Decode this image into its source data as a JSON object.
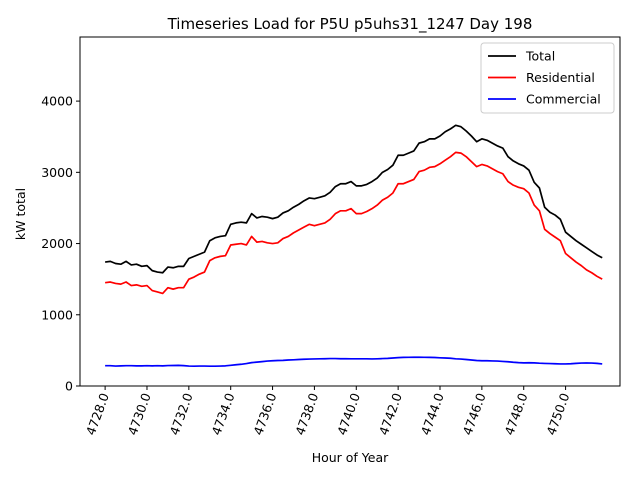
{
  "chart_data": {
    "type": "line",
    "title": "Timeseries Load for P5U p5uhs31_1247  Day 198",
    "xlabel": "Hour of Year",
    "ylabel": "kW total",
    "xlim": [
      4726.8,
      4752.6
    ],
    "ylim": [
      0,
      4900
    ],
    "x_ticks": [
      4728,
      4730,
      4732,
      4734,
      4736,
      4738,
      4740,
      4742,
      4744,
      4746,
      4748,
      4750
    ],
    "x_tick_labels": [
      "4728.0",
      "4730.0",
      "4732.0",
      "4734.0",
      "4736.0",
      "4738.0",
      "4740.0",
      "4742.0",
      "4744.0",
      "4746.0",
      "4748.0",
      "4750.0"
    ],
    "y_ticks": [
      0,
      1000,
      2000,
      3000,
      4000
    ],
    "y_tick_labels": [
      "0",
      "1000",
      "2000",
      "3000",
      "4000"
    ],
    "legend_position": "top-right",
    "x_start": 4728.0,
    "x_step": 0.25,
    "series": [
      {
        "name": "Total",
        "color": "#000000",
        "values": [
          1740,
          1750,
          1720,
          1710,
          1750,
          1700,
          1710,
          1680,
          1690,
          1620,
          1600,
          1590,
          1670,
          1660,
          1680,
          1680,
          1790,
          1820,
          1850,
          1880,
          2040,
          2080,
          2100,
          2110,
          2270,
          2290,
          2300,
          2290,
          2420,
          2360,
          2380,
          2370,
          2350,
          2370,
          2430,
          2460,
          2510,
          2550,
          2600,
          2640,
          2630,
          2650,
          2670,
          2720,
          2800,
          2840,
          2840,
          2870,
          2810,
          2810,
          2830,
          2870,
          2920,
          3000,
          3040,
          3100,
          3240,
          3240,
          3270,
          3300,
          3410,
          3430,
          3470,
          3470,
          3510,
          3570,
          3610,
          3660,
          3640,
          3580,
          3510,
          3430,
          3470,
          3450,
          3410,
          3370,
          3340,
          3220,
          3160,
          3120,
          3090,
          3030,
          2860,
          2780,
          2510,
          2440,
          2400,
          2340,
          2160,
          2100,
          2040,
          1990,
          1940,
          1890,
          1840,
          1800
        ]
      },
      {
        "name": "Residential",
        "color": "#ff0000",
        "values": [
          1450,
          1460,
          1440,
          1430,
          1460,
          1410,
          1420,
          1400,
          1410,
          1340,
          1320,
          1300,
          1380,
          1360,
          1380,
          1380,
          1500,
          1530,
          1570,
          1600,
          1760,
          1800,
          1820,
          1830,
          1980,
          1990,
          2000,
          1980,
          2100,
          2020,
          2030,
          2010,
          2000,
          2010,
          2070,
          2100,
          2150,
          2190,
          2230,
          2270,
          2250,
          2270,
          2290,
          2340,
          2420,
          2460,
          2460,
          2490,
          2420,
          2420,
          2450,
          2490,
          2540,
          2610,
          2650,
          2710,
          2840,
          2840,
          2870,
          2900,
          3010,
          3030,
          3070,
          3080,
          3120,
          3170,
          3220,
          3280,
          3270,
          3220,
          3150,
          3080,
          3110,
          3090,
          3050,
          3010,
          2980,
          2870,
          2820,
          2790,
          2770,
          2710,
          2540,
          2460,
          2200,
          2140,
          2090,
          2040,
          1860,
          1800,
          1740,
          1690,
          1630,
          1590,
          1540,
          1500
        ]
      },
      {
        "name": "Commercial",
        "color": "#0000ff",
        "values": [
          285,
          285,
          280,
          282,
          285,
          285,
          282,
          283,
          285,
          283,
          285,
          283,
          287,
          288,
          290,
          286,
          280,
          278,
          280,
          280,
          278,
          278,
          280,
          283,
          290,
          298,
          305,
          315,
          328,
          335,
          342,
          350,
          355,
          358,
          360,
          365,
          368,
          372,
          376,
          378,
          380,
          382,
          383,
          385,
          385,
          383,
          383,
          382,
          382,
          382,
          382,
          380,
          382,
          385,
          388,
          393,
          398,
          402,
          403,
          404,
          404,
          403,
          402,
          400,
          396,
          393,
          390,
          382,
          378,
          372,
          365,
          358,
          355,
          355,
          352,
          350,
          345,
          340,
          333,
          328,
          325,
          326,
          325,
          320,
          317,
          315,
          312,
          310,
          310,
          312,
          318,
          322,
          323,
          322,
          318,
          310
        ]
      }
    ]
  }
}
